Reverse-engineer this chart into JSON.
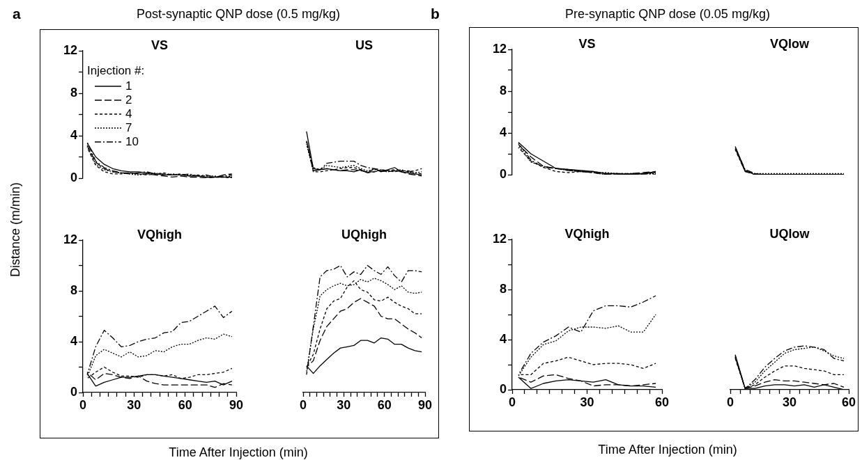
{
  "chart_data": [
    {
      "type": "line",
      "title": "VS",
      "ylabel": "Distance (m/min)",
      "annotations": [
        "a",
        "Post-synaptic QNP dose (0.5 mg/kg)"
      ],
      "legend": "top left",
      "legend_title": "Injection #:",
      "marker": "none",
      "tick_labels": "y",
      "x": [
        2.5,
        7.5,
        12.5,
        17.5,
        22.5,
        27.5,
        32.5,
        37.5,
        42.5,
        47.5,
        52.5,
        57.5,
        62.5,
        67.5,
        72.5,
        77.5,
        82.5,
        87.5
      ],
      "xlim": [
        0,
        90
      ],
      "ylim": [
        0,
        12
      ],
      "yticks": [
        0,
        {
          "value": 2,
          "label": null
        },
        4,
        {
          "value": 6,
          "label": null
        },
        8,
        {
          "value": 10,
          "label": null
        },
        12
      ],
      "series": [
        {
          "name": "1",
          "color": "#000000",
          "line_style": "solid",
          "values": [
            3.3,
            2.0,
            1.3,
            0.9,
            0.7,
            0.6,
            0.6,
            0.5,
            0.4,
            0.3,
            0.3,
            0.3,
            0.2,
            0.2,
            0.1,
            0.1,
            0.1,
            0.1
          ]
        },
        {
          "name": "2",
          "color": "#000000",
          "line_style": "longdash",
          "values": [
            3.1,
            1.5,
            0.9,
            0.6,
            0.5,
            0.5,
            0.4,
            0.4,
            0.3,
            0.2,
            0.1,
            0.2,
            0.1,
            0.1,
            0.0,
            0.1,
            0.3,
            0.4
          ]
        },
        {
          "name": "4",
          "color": "#000000",
          "line_style": "dashed",
          "values": [
            2.9,
            1.2,
            0.6,
            0.4,
            0.4,
            0.5,
            0.4,
            0.3,
            0.4,
            0.5,
            0.3,
            0.4,
            0.2,
            0.3,
            0.1,
            0.1,
            0.1,
            0.0
          ]
        },
        {
          "name": "7",
          "color": "#000000",
          "line_style": "dotted",
          "values": [
            3.0,
            1.3,
            0.8,
            0.6,
            0.5,
            0.4,
            0.3,
            0.4,
            0.5,
            0.3,
            0.4,
            0.3,
            0.3,
            0.2,
            0.2,
            0.2,
            0.1,
            0.2
          ]
        },
        {
          "name": "10",
          "color": "#000000",
          "line_style": "dashdot",
          "values": [
            3.4,
            1.6,
            1.0,
            0.7,
            0.5,
            0.4,
            0.5,
            0.6,
            0.4,
            0.4,
            0.3,
            0.3,
            0.4,
            0.2,
            0.3,
            0.1,
            0.2,
            0.3
          ]
        }
      ]
    },
    {
      "type": "line",
      "title": "US",
      "marker": "none",
      "tick_labels": false,
      "x": [
        2.5,
        7.5,
        12.5,
        17.5,
        22.5,
        27.5,
        32.5,
        37.5,
        42.5,
        47.5,
        52.5,
        57.5,
        62.5,
        67.5,
        72.5,
        77.5,
        82.5,
        87.5
      ],
      "xlim": [
        0,
        90
      ],
      "ylim": [
        0,
        12
      ],
      "series": [
        {
          "color": "#000000",
          "line_style": "solid",
          "values": [
            4.4,
            0.9,
            0.8,
            0.9,
            0.8,
            0.7,
            0.7,
            0.6,
            0.8,
            0.5,
            0.9,
            0.6,
            0.8,
            1.0,
            0.6,
            0.5,
            0.4,
            0.3
          ]
        },
        {
          "color": "#000000",
          "line_style": "longdash",
          "values": [
            3.6,
            0.7,
            0.8,
            0.9,
            0.8,
            0.7,
            0.8,
            0.8,
            0.7,
            0.6,
            0.6,
            0.7,
            0.6,
            0.7,
            0.6,
            0.4,
            0.3,
            0.2
          ]
        },
        {
          "color": "#000000",
          "line_style": "dashed",
          "values": [
            3.4,
            0.6,
            0.6,
            0.7,
            0.8,
            0.9,
            1.0,
            1.0,
            0.8,
            0.5,
            0.6,
            0.8,
            0.7,
            0.8,
            0.7,
            0.6,
            0.7,
            0.9
          ]
        },
        {
          "color": "#000000",
          "line_style": "dotted",
          "values": [
            3.2,
            0.7,
            0.8,
            1.2,
            1.1,
            1.0,
            1.1,
            1.2,
            0.9,
            0.7,
            0.8,
            0.7,
            0.6,
            0.7,
            0.8,
            0.6,
            0.5,
            0.6
          ]
        },
        {
          "color": "#000000",
          "line_style": "dashdot",
          "values": [
            3.5,
            1.0,
            0.8,
            1.4,
            1.5,
            1.6,
            1.6,
            1.6,
            1.2,
            1.0,
            0.9,
            0.8,
            0.7,
            0.6,
            0.7,
            0.7,
            0.5,
            0.4
          ]
        }
      ]
    },
    {
      "type": "line",
      "title": "VQhigh",
      "xlabel": "Time After Injection (min)",
      "marker": "none",
      "x": [
        2.5,
        7.5,
        12.5,
        17.5,
        22.5,
        27.5,
        32.5,
        37.5,
        42.5,
        47.5,
        52.5,
        57.5,
        62.5,
        67.5,
        72.5,
        77.5,
        82.5,
        87.5
      ],
      "xlim": [
        0,
        90
      ],
      "ylim": [
        0,
        12
      ],
      "xticks": [
        0,
        {
          "value": 5,
          "label": null
        },
        {
          "value": 10,
          "label": null
        },
        {
          "value": 15,
          "label": null
        },
        {
          "value": 20,
          "label": null
        },
        {
          "value": 25,
          "label": null
        },
        30,
        {
          "value": 35,
          "label": null
        },
        {
          "value": 40,
          "label": null
        },
        {
          "value": 45,
          "label": null
        },
        {
          "value": 50,
          "label": null
        },
        {
          "value": 55,
          "label": null
        },
        60,
        {
          "value": 65,
          "label": null
        },
        {
          "value": 70,
          "label": null
        },
        {
          "value": 75,
          "label": null
        },
        {
          "value": 80,
          "label": null
        },
        {
          "value": 85,
          "label": null
        },
        90
      ],
      "yticks": [
        0,
        {
          "value": 2,
          "label": null
        },
        4,
        {
          "value": 6,
          "label": null
        },
        8,
        {
          "value": 10,
          "label": null
        },
        12
      ],
      "series": [
        {
          "color": "#000000",
          "line_style": "solid",
          "values": [
            1.5,
            0.5,
            0.8,
            1.0,
            1.2,
            1.2,
            1.3,
            1.4,
            1.4,
            1.3,
            1.2,
            1.1,
            1.0,
            0.9,
            0.8,
            0.9,
            0.6,
            0.9
          ]
        },
        {
          "color": "#000000",
          "line_style": "longdash",
          "values": [
            1.6,
            1.0,
            1.5,
            1.4,
            1.2,
            1.1,
            1.3,
            0.9,
            0.7,
            0.6,
            0.6,
            0.6,
            0.6,
            0.6,
            0.6,
            0.4,
            0.7,
            0.6
          ]
        },
        {
          "color": "#000000",
          "line_style": "dashed",
          "values": [
            1.1,
            1.6,
            2.0,
            1.6,
            1.3,
            1.3,
            1.2,
            1.4,
            1.4,
            1.3,
            1.4,
            1.1,
            1.2,
            1.4,
            1.4,
            1.5,
            1.6,
            1.9
          ]
        },
        {
          "color": "#000000",
          "line_style": "dotted",
          "values": [
            1.2,
            2.9,
            3.4,
            3.1,
            2.8,
            3.2,
            2.8,
            2.9,
            3.3,
            3.2,
            3.6,
            3.8,
            3.8,
            4.1,
            4.3,
            4.2,
            4.6,
            4.4
          ]
        },
        {
          "color": "#000000",
          "line_style": "dashdot",
          "values": [
            1.4,
            3.6,
            4.9,
            4.3,
            3.6,
            3.7,
            4.0,
            4.2,
            4.3,
            4.7,
            4.8,
            5.5,
            5.6,
            6.0,
            6.4,
            6.8,
            5.9,
            6.4
          ]
        }
      ]
    },
    {
      "type": "line",
      "title": "UQhigh",
      "marker": "none",
      "tick_labels": "x",
      "x": [
        2.5,
        7.5,
        12.5,
        17.5,
        22.5,
        27.5,
        32.5,
        37.5,
        42.5,
        47.5,
        52.5,
        57.5,
        62.5,
        67.5,
        72.5,
        77.5,
        82.5,
        87.5
      ],
      "xlim": [
        0,
        90
      ],
      "ylim": [
        0,
        12
      ],
      "xticks": [
        0,
        {
          "value": 5,
          "label": null
        },
        {
          "value": 10,
          "label": null
        },
        {
          "value": 15,
          "label": null
        },
        {
          "value": 20,
          "label": null
        },
        {
          "value": 25,
          "label": null
        },
        30,
        {
          "value": 35,
          "label": null
        },
        {
          "value": 40,
          "label": null
        },
        {
          "value": 45,
          "label": null
        },
        {
          "value": 50,
          "label": null
        },
        {
          "value": 55,
          "label": null
        },
        60,
        {
          "value": 65,
          "label": null
        },
        {
          "value": 70,
          "label": null
        },
        {
          "value": 75,
          "label": null
        },
        {
          "value": 80,
          "label": null
        },
        {
          "value": 85,
          "label": null
        },
        90
      ],
      "series": [
        {
          "color": "#000000",
          "line_style": "solid",
          "values": [
            2.1,
            1.5,
            2.1,
            2.6,
            3.1,
            3.5,
            3.6,
            3.7,
            4.1,
            4.1,
            3.9,
            4.3,
            4.2,
            3.8,
            3.8,
            3.5,
            3.3,
            3.2
          ]
        },
        {
          "color": "#000000",
          "line_style": "longdash",
          "values": [
            2.0,
            2.5,
            4.1,
            5.2,
            5.8,
            6.4,
            6.6,
            7.1,
            7.4,
            7.1,
            6.8,
            6.0,
            5.8,
            5.8,
            5.4,
            5.0,
            4.7,
            4.3
          ]
        },
        {
          "color": "#000000",
          "line_style": "dashed",
          "values": [
            2.0,
            3.0,
            5.0,
            6.6,
            7.2,
            7.4,
            8.3,
            8.8,
            8.1,
            7.9,
            7.3,
            7.2,
            7.5,
            7.1,
            6.8,
            6.6,
            6.2,
            6.2
          ]
        },
        {
          "color": "#000000",
          "line_style": "dotted",
          "values": [
            1.6,
            5.0,
            7.6,
            8.1,
            8.4,
            8.6,
            8.4,
            8.5,
            8.9,
            8.7,
            9.0,
            8.8,
            8.5,
            8.1,
            8.4,
            7.9,
            7.8,
            7.9
          ]
        },
        {
          "color": "#000000",
          "line_style": "dashdot",
          "values": [
            1.4,
            5.2,
            9.1,
            9.6,
            9.7,
            10.0,
            9.1,
            9.5,
            9.3,
            10.0,
            9.6,
            9.3,
            9.9,
            9.2,
            8.7,
            9.6,
            9.6,
            9.5
          ]
        }
      ]
    },
    {
      "type": "line",
      "title": "VS",
      "annotations": [
        "b",
        "Pre-synaptic QNP dose (0.05 mg/kg)"
      ],
      "marker": "none",
      "tick_labels": "y",
      "x": [
        2.5,
        7.5,
        12.5,
        17.5,
        22.5,
        27.5,
        32.5,
        37.5,
        42.5,
        47.5,
        52.5,
        57.5
      ],
      "xlim": [
        0,
        60
      ],
      "ylim": [
        0,
        12
      ],
      "yticks": [
        0,
        {
          "value": 2,
          "label": null
        },
        4,
        {
          "value": 6,
          "label": null
        },
        8,
        {
          "value": 10,
          "label": null
        },
        12
      ],
      "series": [
        {
          "color": "#000000",
          "line_style": "solid",
          "values": [
            3.1,
            2.0,
            1.3,
            0.6,
            0.5,
            0.4,
            0.3,
            0.1,
            0.1,
            0.0,
            0.1,
            0.2
          ]
        },
        {
          "color": "#000000",
          "line_style": "longdash",
          "values": [
            2.9,
            1.7,
            0.8,
            0.6,
            0.4,
            0.3,
            0.2,
            0.0,
            0.0,
            0.1,
            0.2,
            0.3
          ]
        },
        {
          "color": "#000000",
          "line_style": "dashed",
          "values": [
            2.6,
            1.3,
            0.7,
            0.3,
            0.2,
            0.3,
            0.3,
            0.1,
            0.1,
            0.1,
            0.1,
            0.3
          ]
        },
        {
          "color": "#000000",
          "line_style": "dotted",
          "values": [
            2.8,
            1.2,
            0.8,
            0.6,
            0.4,
            0.3,
            0.2,
            0.2,
            0.1,
            0.1,
            0.1,
            0.1
          ]
        },
        {
          "color": "#000000",
          "line_style": "dashdot",
          "values": [
            3.0,
            1.4,
            0.7,
            0.6,
            0.5,
            0.3,
            0.2,
            0.0,
            0.0,
            0.0,
            0.0,
            0.0
          ]
        }
      ]
    },
    {
      "type": "line",
      "title": "VQlow",
      "marker": "none",
      "tick_labels": false,
      "x": [
        2.5,
        7.5,
        12.5,
        17.5,
        22.5,
        27.5,
        32.5,
        37.5,
        42.5,
        47.5,
        52.5,
        57.5
      ],
      "xlim": [
        0,
        60
      ],
      "ylim": [
        0,
        12
      ],
      "series": [
        {
          "color": "#000000",
          "line_style": "solid",
          "values": [
            2.7,
            0.4,
            0.0,
            0.0,
            0.0,
            0.0,
            0.0,
            0.0,
            0.0,
            0.0,
            0.0,
            0.0
          ]
        },
        {
          "color": "#000000",
          "line_style": "longdash",
          "values": [
            2.5,
            0.3,
            0.0,
            0.0,
            0.0,
            0.0,
            0.0,
            0.0,
            0.0,
            0.0,
            0.0,
            0.0
          ]
        },
        {
          "color": "#000000",
          "line_style": "dashed",
          "values": [
            2.4,
            0.3,
            0.1,
            0.0,
            0.0,
            0.0,
            0.0,
            0.0,
            0.0,
            0.0,
            0.0,
            0.0
          ]
        },
        {
          "color": "#000000",
          "line_style": "dotted",
          "values": [
            2.6,
            0.4,
            0.1,
            0.1,
            0.1,
            0.1,
            0.1,
            0.1,
            0.1,
            0.1,
            0.1,
            0.1
          ]
        },
        {
          "color": "#000000",
          "line_style": "dashdot",
          "values": [
            2.6,
            0.5,
            0.1,
            0.0,
            0.0,
            0.0,
            0.0,
            0.0,
            0.0,
            0.0,
            0.0,
            0.0
          ]
        }
      ]
    },
    {
      "type": "line",
      "title": "VQhigh",
      "xlabel": "Time After Injection (min)",
      "marker": "none",
      "x": [
        2.5,
        7.5,
        12.5,
        17.5,
        22.5,
        27.5,
        32.5,
        37.5,
        42.5,
        47.5,
        52.5,
        57.5
      ],
      "xlim": [
        0,
        60
      ],
      "ylim": [
        0,
        12
      ],
      "xticks": [
        0,
        {
          "value": 5,
          "label": null
        },
        {
          "value": 10,
          "label": null
        },
        {
          "value": 15,
          "label": null
        },
        {
          "value": 20,
          "label": null
        },
        {
          "value": 25,
          "label": null
        },
        30,
        {
          "value": 35,
          "label": null
        },
        {
          "value": 40,
          "label": null
        },
        {
          "value": 45,
          "label": null
        },
        {
          "value": 50,
          "label": null
        },
        {
          "value": 55,
          "label": null
        },
        60
      ],
      "yticks": [
        0,
        {
          "value": 2,
          "label": null
        },
        4,
        {
          "value": 6,
          "label": null
        },
        8,
        {
          "value": 10,
          "label": null
        },
        12
      ],
      "series": [
        {
          "color": "#000000",
          "line_style": "solid",
          "values": [
            1.0,
            0.1,
            0.5,
            0.7,
            0.8,
            0.7,
            0.6,
            0.8,
            0.4,
            0.3,
            0.3,
            0.2
          ]
        },
        {
          "color": "#000000",
          "line_style": "longdash",
          "values": [
            1.0,
            0.6,
            1.1,
            1.2,
            0.9,
            0.7,
            0.3,
            0.4,
            0.4,
            0.3,
            0.4,
            0.5
          ]
        },
        {
          "color": "#000000",
          "line_style": "dashed",
          "values": [
            1.2,
            1.2,
            2.1,
            2.3,
            2.6,
            2.3,
            2.0,
            2.1,
            2.1,
            2.0,
            1.7,
            2.1
          ]
        },
        {
          "color": "#000000",
          "line_style": "dotted",
          "values": [
            1.1,
            2.6,
            3.6,
            3.9,
            4.7,
            5.0,
            5.0,
            4.9,
            5.1,
            4.6,
            4.6,
            6.0
          ]
        },
        {
          "color": "#000000",
          "line_style": "dashdot",
          "values": [
            1.2,
            2.9,
            3.8,
            4.3,
            5.0,
            4.6,
            6.3,
            6.7,
            6.7,
            6.6,
            7.0,
            7.5
          ]
        }
      ]
    },
    {
      "type": "line",
      "title": "UQlow",
      "marker": "none",
      "tick_labels": "x",
      "x": [
        2.5,
        7.5,
        12.5,
        17.5,
        22.5,
        27.5,
        32.5,
        37.5,
        42.5,
        47.5,
        52.5,
        57.5
      ],
      "xlim": [
        0,
        60
      ],
      "ylim": [
        0,
        12
      ],
      "xticks": [
        0,
        {
          "value": 5,
          "label": null
        },
        {
          "value": 10,
          "label": null
        },
        {
          "value": 15,
          "label": null
        },
        {
          "value": 20,
          "label": null
        },
        {
          "value": 25,
          "label": null
        },
        30,
        {
          "value": 35,
          "label": null
        },
        {
          "value": 40,
          "label": null
        },
        {
          "value": 45,
          "label": null
        },
        {
          "value": 50,
          "label": null
        },
        {
          "value": 55,
          "label": null
        },
        60
      ],
      "series": [
        {
          "color": "#000000",
          "line_style": "solid",
          "values": [
            2.8,
            0.1,
            0.1,
            0.3,
            0.4,
            0.4,
            0.3,
            0.4,
            0.2,
            0.4,
            0.2,
            0.0
          ]
        },
        {
          "color": "#000000",
          "line_style": "longdash",
          "values": [
            2.6,
            0.1,
            0.3,
            0.6,
            0.8,
            0.7,
            0.7,
            0.6,
            0.5,
            0.4,
            0.5,
            0.2
          ]
        },
        {
          "color": "#000000",
          "line_style": "dashed",
          "values": [
            2.5,
            0.1,
            0.4,
            1.0,
            1.5,
            1.9,
            1.9,
            1.7,
            1.6,
            1.5,
            1.2,
            1.2
          ]
        },
        {
          "color": "#000000",
          "line_style": "dotted",
          "values": [
            2.6,
            0.1,
            0.6,
            1.5,
            2.2,
            2.9,
            3.2,
            3.3,
            3.4,
            3.1,
            2.7,
            2.5
          ]
        },
        {
          "color": "#000000",
          "line_style": "dashdot",
          "values": [
            2.7,
            0.1,
            0.8,
            1.8,
            2.5,
            3.1,
            3.4,
            3.5,
            3.4,
            3.2,
            2.5,
            2.3
          ]
        }
      ]
    }
  ]
}
